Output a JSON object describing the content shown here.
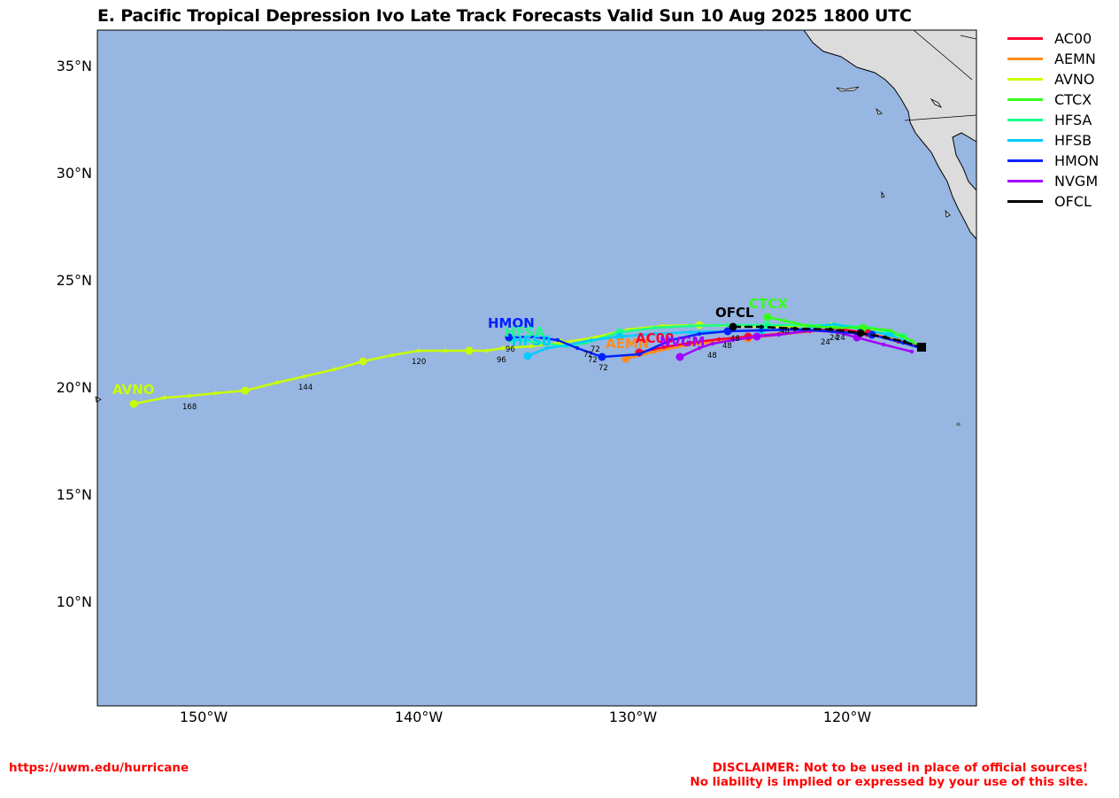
{
  "title": "E. Pacific Tropical Depression Ivo Late Track Forecasts Valid Sun 10 Aug 2025 1800 UTC",
  "colors": {
    "ocean": "#97b6e1",
    "land": "#dcdcdc"
  },
  "axes": {
    "lat_ticks": [
      "35°N",
      "30°N",
      "25°N",
      "20°N",
      "15°N",
      "10°N"
    ],
    "lon_ticks": [
      "150°W",
      "140°W",
      "130°W",
      "120°W"
    ]
  },
  "legend": [
    {
      "name": "AC00",
      "color": "#ff0033"
    },
    {
      "name": "AEMN",
      "color": "#ff8c1a"
    },
    {
      "name": "AVNO",
      "color": "#c8ff00"
    },
    {
      "name": "CTCX",
      "color": "#33ff1a"
    },
    {
      "name": "HFSA",
      "color": "#1aff8c"
    },
    {
      "name": "HFSB",
      "color": "#00ccff"
    },
    {
      "name": "HMON",
      "color": "#0022ff"
    },
    {
      "name": "NVGM",
      "color": "#a300ff"
    },
    {
      "name": "OFCL",
      "color": "#000000"
    }
  ],
  "map_labels": {
    "AVNO": "AVNO",
    "HMON": "HMON",
    "HFSA": "HFSA",
    "HFSB": "HFSB",
    "AEMN": "AEMN",
    "AC00": "AC00",
    "NVGM": "NVGM",
    "OFCL": "OFCL",
    "CTCX": "CTCX"
  },
  "hour_labels": {
    "h168": "168",
    "h144": "144",
    "h120": "120",
    "h96a": "96",
    "h96b": "96",
    "h72a": "72",
    "h72b": "72",
    "h72c": "72",
    "h72d": "72",
    "h48a": "48",
    "h48b": "48",
    "h48c": "48",
    "h48d": "48",
    "h24a": "24",
    "h24b": "24",
    "h24c": "24"
  },
  "footer": {
    "url": "https://uwm.edu/hurricane",
    "disclaimer_line1": "DISCLAIMER: Not to be used in place of official sources!",
    "disclaimer_line2": "No liability is implied or expressed by your use of this site."
  }
}
